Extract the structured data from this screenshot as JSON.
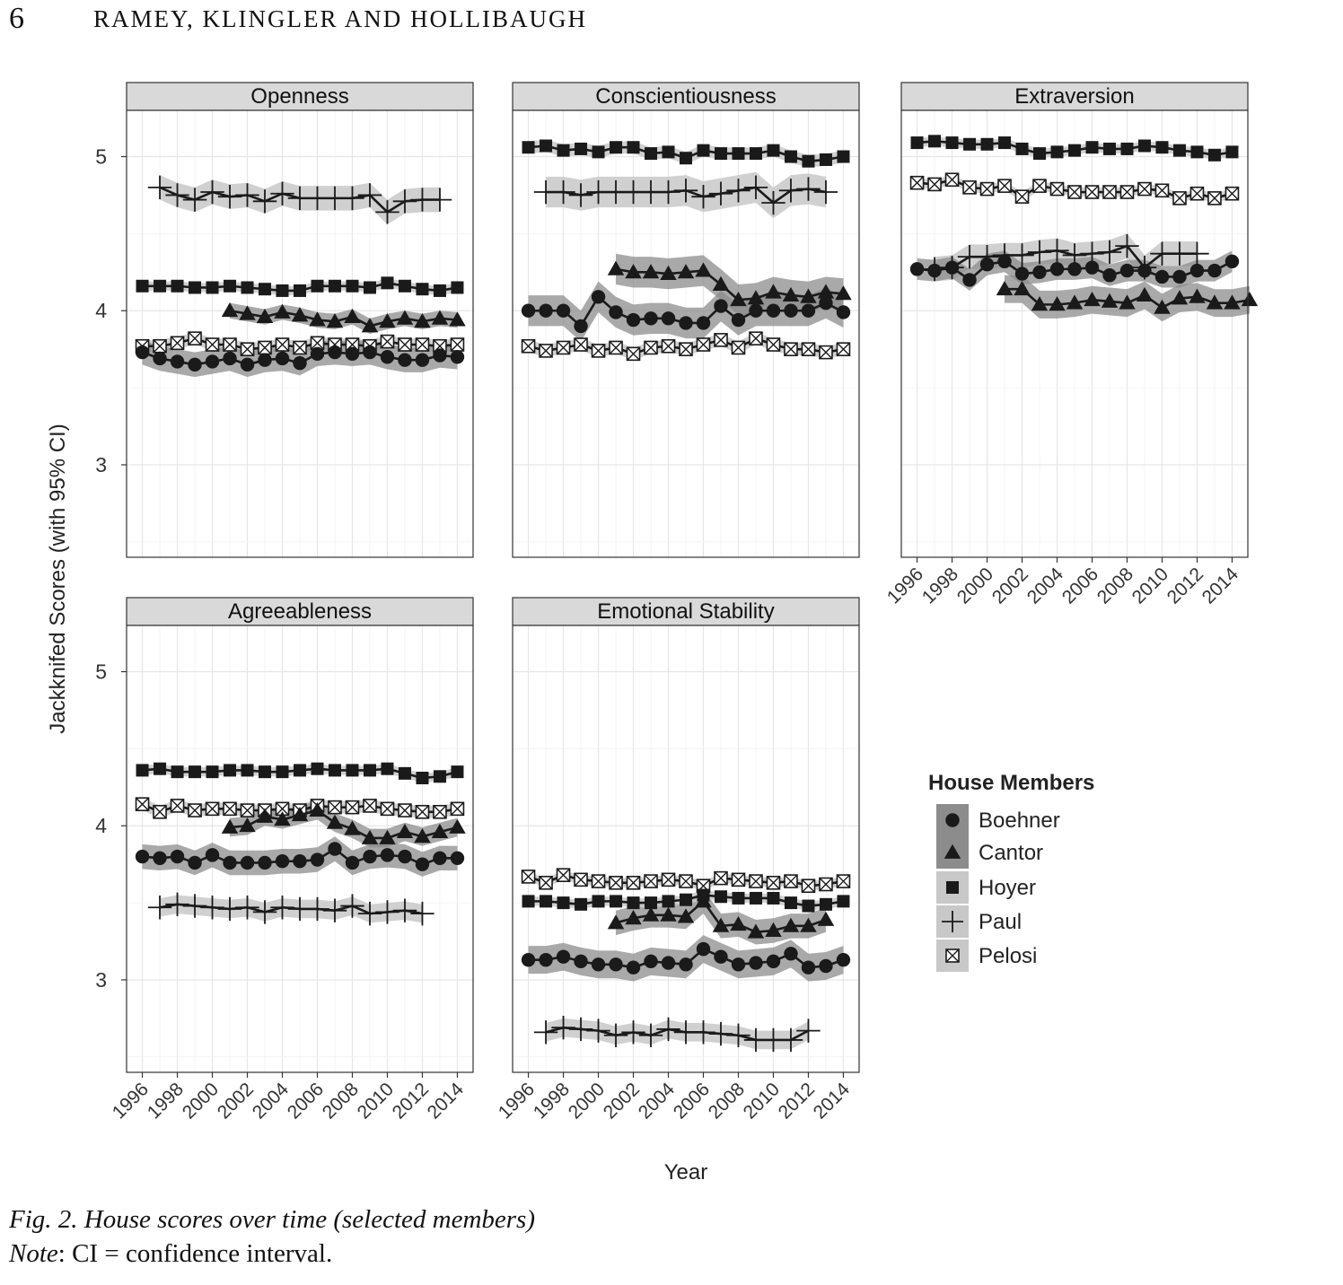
{
  "page": {
    "page_number": "6",
    "running_head": "RAMEY, KLINGLER AND HOLLIBAUGH"
  },
  "caption": "Fig. 2. House scores over time (selected members)",
  "note": {
    "label": "Note",
    "text": ": CI = confidence interval."
  },
  "colors": {
    "band": "#c8c8c8",
    "band_dark": "#8c8c8c",
    "line": "#1a1a1a",
    "strip": "#d9d9d9",
    "grid": "#ebebeb"
  },
  "chart_data": {
    "type": "line",
    "facets": [
      "Openness",
      "Conscientiousness",
      "Extraversion",
      "Agreeableness",
      "Emotional Stability"
    ],
    "xlabel": "Year",
    "ylabel": "Jackknifed Scores (with 95% CI)",
    "x_ticks": [
      "1996",
      "1998",
      "2000",
      "2002",
      "2004",
      "2006",
      "2008",
      "2010",
      "2012",
      "2014"
    ],
    "y_ticks": [
      "3",
      "4",
      "5"
    ],
    "ylim": [
      2.4,
      5.3
    ],
    "xlim": [
      1995.1,
      2014.9
    ],
    "legend": {
      "title": "House Members",
      "position": "right",
      "entries": [
        "Boehner",
        "Cantor",
        "Hoyer",
        "Paul",
        "Pelosi"
      ]
    },
    "markers": {
      "Boehner": "circle",
      "Cantor": "triangle",
      "Hoyer": "square",
      "Paul": "plus",
      "Pelosi": "boxed-x"
    },
    "series": {
      "Openness": {
        "Boehner": {
          "start": 1996,
          "values": [
            3.73,
            3.69,
            3.67,
            3.65,
            3.67,
            3.69,
            3.65,
            3.68,
            3.69,
            3.66,
            3.72,
            3.73,
            3.72,
            3.73,
            3.7,
            3.68,
            3.68,
            3.71,
            3.7
          ],
          "ci": 0.08
        },
        "Cantor": {
          "start": 2001,
          "values": [
            4.0,
            3.98,
            3.96,
            3.99,
            3.97,
            3.94,
            3.93,
            3.96,
            3.9,
            3.93,
            3.95,
            3.93,
            3.95,
            3.94
          ],
          "ci": 0.05
        },
        "Hoyer": {
          "start": 1996,
          "values": [
            4.16,
            4.16,
            4.16,
            4.15,
            4.15,
            4.16,
            4.15,
            4.14,
            4.13,
            4.13,
            4.16,
            4.16,
            4.16,
            4.15,
            4.18,
            4.16,
            4.14,
            4.13,
            4.15
          ],
          "ci": 0.03
        },
        "Paul": {
          "start": 1997,
          "values": [
            4.8,
            4.75,
            4.72,
            4.77,
            4.74,
            4.75,
            4.71,
            4.76,
            4.73,
            4.73,
            4.73,
            4.73,
            4.75,
            4.64,
            4.71,
            4.72,
            4.72
          ],
          "ci": 0.08
        },
        "Pelosi": {
          "start": 1996,
          "values": [
            3.77,
            3.77,
            3.79,
            3.82,
            3.78,
            3.78,
            3.75,
            3.76,
            3.78,
            3.76,
            3.79,
            3.78,
            3.78,
            3.77,
            3.8,
            3.78,
            3.78,
            3.77,
            3.78
          ],
          "ci": 0.04
        }
      },
      "Conscientiousness": {
        "Boehner": {
          "start": 1996,
          "values": [
            4.0,
            4.0,
            4.0,
            3.9,
            4.09,
            3.99,
            3.94,
            3.95,
            3.95,
            3.92,
            3.92,
            4.03,
            3.94,
            4.0,
            4.0,
            4.0,
            4.0,
            4.05,
            3.99
          ],
          "ci": 0.1
        },
        "Cantor": {
          "start": 2001,
          "values": [
            4.27,
            4.25,
            4.25,
            4.24,
            4.25,
            4.26,
            4.17,
            4.07,
            4.08,
            4.12,
            4.1,
            4.09,
            4.12,
            4.11
          ],
          "ci": 0.1
        },
        "Hoyer": {
          "start": 1996,
          "values": [
            5.06,
            5.07,
            5.04,
            5.05,
            5.03,
            5.06,
            5.06,
            5.02,
            5.03,
            4.99,
            5.04,
            5.02,
            5.02,
            5.02,
            5.04,
            5.0,
            4.97,
            4.98,
            5.0
          ],
          "ci": 0.04
        },
        "Paul": {
          "start": 1997,
          "values": [
            4.77,
            4.77,
            4.75,
            4.77,
            4.77,
            4.77,
            4.77,
            4.77,
            4.78,
            4.74,
            4.76,
            4.78,
            4.8,
            4.7,
            4.78,
            4.79,
            4.77
          ],
          "ci": 0.1
        },
        "Pelosi": {
          "start": 1996,
          "values": [
            3.77,
            3.74,
            3.76,
            3.78,
            3.74,
            3.76,
            3.72,
            3.76,
            3.77,
            3.75,
            3.78,
            3.81,
            3.76,
            3.82,
            3.78,
            3.75,
            3.75,
            3.73,
            3.75
          ],
          "ci": 0.04
        }
      },
      "Extraversion": {
        "Boehner": {
          "start": 1996,
          "values": [
            4.27,
            4.26,
            4.28,
            4.2,
            4.3,
            4.32,
            4.24,
            4.25,
            4.27,
            4.27,
            4.28,
            4.23,
            4.26,
            4.26,
            4.22,
            4.22,
            4.26,
            4.26,
            4.32
          ],
          "ci": 0.07
        },
        "Cantor": {
          "start": 2001,
          "values": [
            4.14,
            4.14,
            4.04,
            4.04,
            4.05,
            4.07,
            4.06,
            4.05,
            4.1,
            4.02,
            4.08,
            4.09,
            4.05,
            4.05,
            4.07
          ],
          "ci": 0.09
        },
        "Hoyer": {
          "start": 1996,
          "values": [
            5.09,
            5.1,
            5.09,
            5.08,
            5.08,
            5.09,
            5.05,
            5.02,
            5.03,
            5.04,
            5.06,
            5.05,
            5.05,
            5.07,
            5.06,
            5.04,
            5.03,
            5.01,
            5.03
          ],
          "ci": 0.03
        },
        "Paul": {
          "start": 1997,
          "values": [
            4.27,
            4.28,
            4.35,
            4.35,
            4.36,
            4.36,
            4.38,
            4.39,
            4.36,
            4.37,
            4.38,
            4.42,
            4.28,
            4.37,
            4.37,
            4.37
          ],
          "ci": 0.08
        },
        "Pelosi": {
          "start": 1996,
          "values": [
            4.83,
            4.82,
            4.85,
            4.8,
            4.79,
            4.81,
            4.74,
            4.81,
            4.79,
            4.77,
            4.77,
            4.77,
            4.77,
            4.79,
            4.78,
            4.73,
            4.76,
            4.73,
            4.76
          ],
          "ci": 0.03
        }
      },
      "Agreeableness": {
        "Boehner": {
          "start": 1996,
          "values": [
            3.8,
            3.79,
            3.8,
            3.76,
            3.81,
            3.76,
            3.76,
            3.76,
            3.77,
            3.77,
            3.78,
            3.85,
            3.76,
            3.8,
            3.81,
            3.8,
            3.75,
            3.79,
            3.79
          ],
          "ci": 0.08
        },
        "Cantor": {
          "start": 2001,
          "values": [
            3.99,
            4.0,
            4.06,
            4.04,
            4.07,
            4.1,
            4.02,
            3.98,
            3.92,
            3.92,
            3.96,
            3.93,
            3.96,
            3.99
          ],
          "ci": 0.06
        },
        "Hoyer": {
          "start": 1996,
          "values": [
            4.36,
            4.37,
            4.35,
            4.35,
            4.35,
            4.36,
            4.36,
            4.35,
            4.35,
            4.36,
            4.37,
            4.36,
            4.36,
            4.36,
            4.37,
            4.34,
            4.31,
            4.32,
            4.35
          ],
          "ci": 0.03
        },
        "Paul": {
          "start": 1997,
          "values": [
            3.47,
            3.49,
            3.48,
            3.47,
            3.46,
            3.47,
            3.44,
            3.47,
            3.46,
            3.46,
            3.45,
            3.48,
            3.43,
            3.44,
            3.45,
            3.43
          ],
          "ci": 0.06
        },
        "Pelosi": {
          "start": 1996,
          "values": [
            4.14,
            4.09,
            4.13,
            4.1,
            4.11,
            4.11,
            4.1,
            4.1,
            4.11,
            4.1,
            4.13,
            4.12,
            4.12,
            4.13,
            4.11,
            4.1,
            4.09,
            4.09,
            4.11
          ],
          "ci": 0.04
        }
      },
      "Emotional Stability": {
        "Boehner": {
          "start": 1996,
          "values": [
            3.13,
            3.13,
            3.15,
            3.12,
            3.1,
            3.1,
            3.08,
            3.12,
            3.11,
            3.1,
            3.2,
            3.15,
            3.1,
            3.11,
            3.12,
            3.17,
            3.08,
            3.09,
            3.13
          ],
          "ci": 0.09
        },
        "Cantor": {
          "start": 2001,
          "values": [
            3.37,
            3.4,
            3.42,
            3.42,
            3.41,
            3.51,
            3.35,
            3.36,
            3.31,
            3.32,
            3.35,
            3.35,
            3.39
          ],
          "ci": 0.08
        },
        "Hoyer": {
          "start": 1996,
          "values": [
            3.51,
            3.51,
            3.5,
            3.49,
            3.51,
            3.51,
            3.5,
            3.5,
            3.51,
            3.52,
            3.55,
            3.54,
            3.53,
            3.53,
            3.53,
            3.5,
            3.48,
            3.49,
            3.51
          ],
          "ci": 0.03
        },
        "Paul": {
          "start": 1997,
          "values": [
            2.66,
            2.69,
            2.68,
            2.67,
            2.64,
            2.66,
            2.64,
            2.68,
            2.66,
            2.66,
            2.65,
            2.64,
            2.61,
            2.61,
            2.61,
            2.67
          ],
          "ci": 0.06
        },
        "Pelosi": {
          "start": 1996,
          "values": [
            3.67,
            3.63,
            3.68,
            3.65,
            3.64,
            3.63,
            3.63,
            3.64,
            3.65,
            3.64,
            3.61,
            3.66,
            3.65,
            3.64,
            3.63,
            3.64,
            3.61,
            3.62,
            3.64
          ],
          "ci": 0.03
        }
      }
    }
  }
}
